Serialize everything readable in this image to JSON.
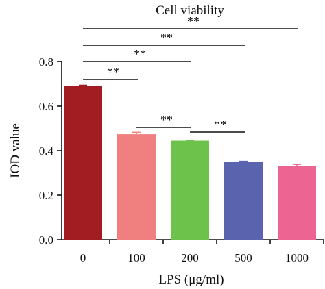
{
  "chart_data": {
    "type": "bar",
    "title": "Cell viability",
    "xlabel": "LPS (μg/ml)",
    "ylabel": "IOD value",
    "categories": [
      "0",
      "100",
      "200",
      "500",
      "1000"
    ],
    "values": [
      0.69,
      0.472,
      0.443,
      0.349,
      0.33
    ],
    "errors": [
      0.004,
      0.01,
      0.004,
      0.003,
      0.008
    ],
    "colors": [
      "#a11d22",
      "#f08080",
      "#6cc24a",
      "#5a63ad",
      "#ec6491"
    ],
    "ylim": [
      0,
      0.8
    ],
    "yticks": [
      0.0,
      0.2,
      0.4,
      0.6,
      0.8
    ],
    "ytick_labels": [
      "0.0",
      "0.2",
      "0.4",
      "0.6",
      "0.8"
    ],
    "grid": false,
    "significance": [
      {
        "from": 0,
        "to": 4,
        "label": "**"
      },
      {
        "from": 0,
        "to": 3,
        "label": "**"
      },
      {
        "from": 0,
        "to": 2,
        "label": "**"
      },
      {
        "from": 0,
        "to": 1,
        "label": "**"
      },
      {
        "from": 1,
        "to": 2,
        "label": "**"
      },
      {
        "from": 2,
        "to": 3,
        "label": "**"
      }
    ]
  }
}
